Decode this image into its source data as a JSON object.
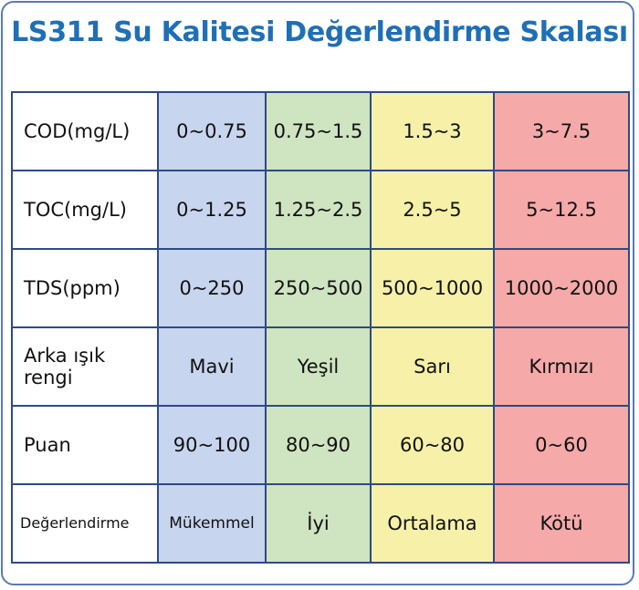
{
  "header": {
    "title": "LS311 Su Kalitesi Değerlendirme Skalası"
  },
  "table": {
    "rows": [
      [
        "COD(mg/L)",
        "0~0.75",
        "0.75~1.5",
        "1.5~3",
        "3~7.5"
      ],
      [
        "TOC(mg/L)",
        "0~1.25",
        "1.25~2.5",
        "2.5~5",
        "5~12.5"
      ],
      [
        "TDS(ppm)",
        "0~250",
        "250~500",
        "500~1000",
        "1000~2000"
      ],
      [
        "Arka ışık rengi",
        "Mavi",
        "Yeşil",
        "Sarı",
        "Kırmızı"
      ],
      [
        "Puan",
        "90~100",
        "80~90",
        "60~80",
        "0~60"
      ],
      [
        "Değerlendirme",
        "Mükemmel",
        "İyi",
        "Ortalama",
        "Kötü"
      ]
    ]
  }
}
